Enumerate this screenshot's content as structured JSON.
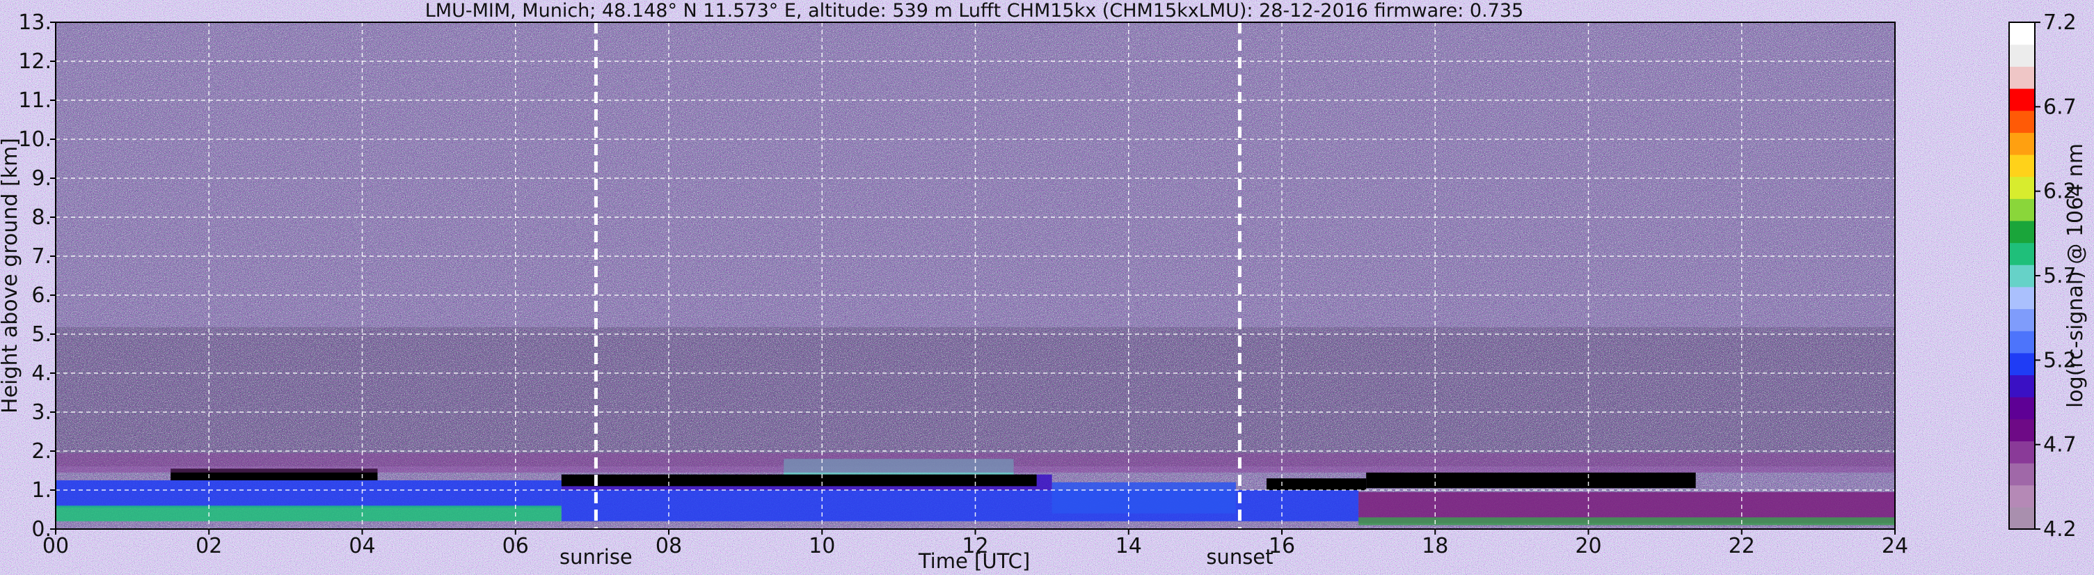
{
  "chart_data": {
    "type": "heatmap",
    "title": "LMU-MIM, Munich; 48.148° N 11.573° E, altitude: 539 m    Lufft CHM15kx (CHM15kxLMU): 28-12-2016    firmware: 0.735",
    "xlabel": "Time [UTC]",
    "ylabel": "Height above ground [km]",
    "xlim": [
      0,
      24
    ],
    "ylim": [
      0,
      13
    ],
    "x_ticks": [
      "00",
      "02",
      "04",
      "06",
      "08",
      "10",
      "12",
      "14",
      "16",
      "18",
      "20",
      "22",
      "24"
    ],
    "x_tick_values": [
      0,
      2,
      4,
      6,
      8,
      10,
      12,
      14,
      16,
      18,
      20,
      22,
      24
    ],
    "y_ticks": [
      "0.",
      "1.",
      "2.",
      "3.",
      "4.",
      "5.",
      "6.",
      "7.",
      "8.",
      "9.",
      "10.",
      "11.",
      "12.",
      "13."
    ],
    "y_tick_values": [
      0,
      1,
      2,
      3,
      4,
      5,
      6,
      7,
      8,
      9,
      10,
      11,
      12,
      13
    ],
    "grid": true,
    "events": [
      {
        "label": "sunrise",
        "time": 7.05
      },
      {
        "label": "sunset",
        "time": 15.45
      }
    ],
    "colorbar": {
      "label": "log(rc-signal) @ 1064 nm",
      "ticks": [
        "4.2",
        "4.7",
        "5.2",
        "5.7",
        "6.2",
        "6.7",
        "7.2"
      ],
      "tick_values": [
        4.2,
        4.7,
        5.2,
        5.7,
        6.2,
        6.7,
        7.2
      ],
      "range": [
        4.2,
        7.2
      ],
      "colors": [
        "#a98fae",
        "#b589b6",
        "#a068a8",
        "#8a3a98",
        "#6e0a86",
        "#5e0095",
        "#3a10c4",
        "#1f3cf5",
        "#4d74fb",
        "#7f9cfb",
        "#aac0fd",
        "#66d2c8",
        "#1fbf7a",
        "#1aa53a",
        "#8ad63a",
        "#d8ec2e",
        "#ffd21a",
        "#ffa010",
        "#ff5a06",
        "#ff0000",
        "#efc6c6",
        "#ececec",
        "#ffffff"
      ]
    }
  }
}
